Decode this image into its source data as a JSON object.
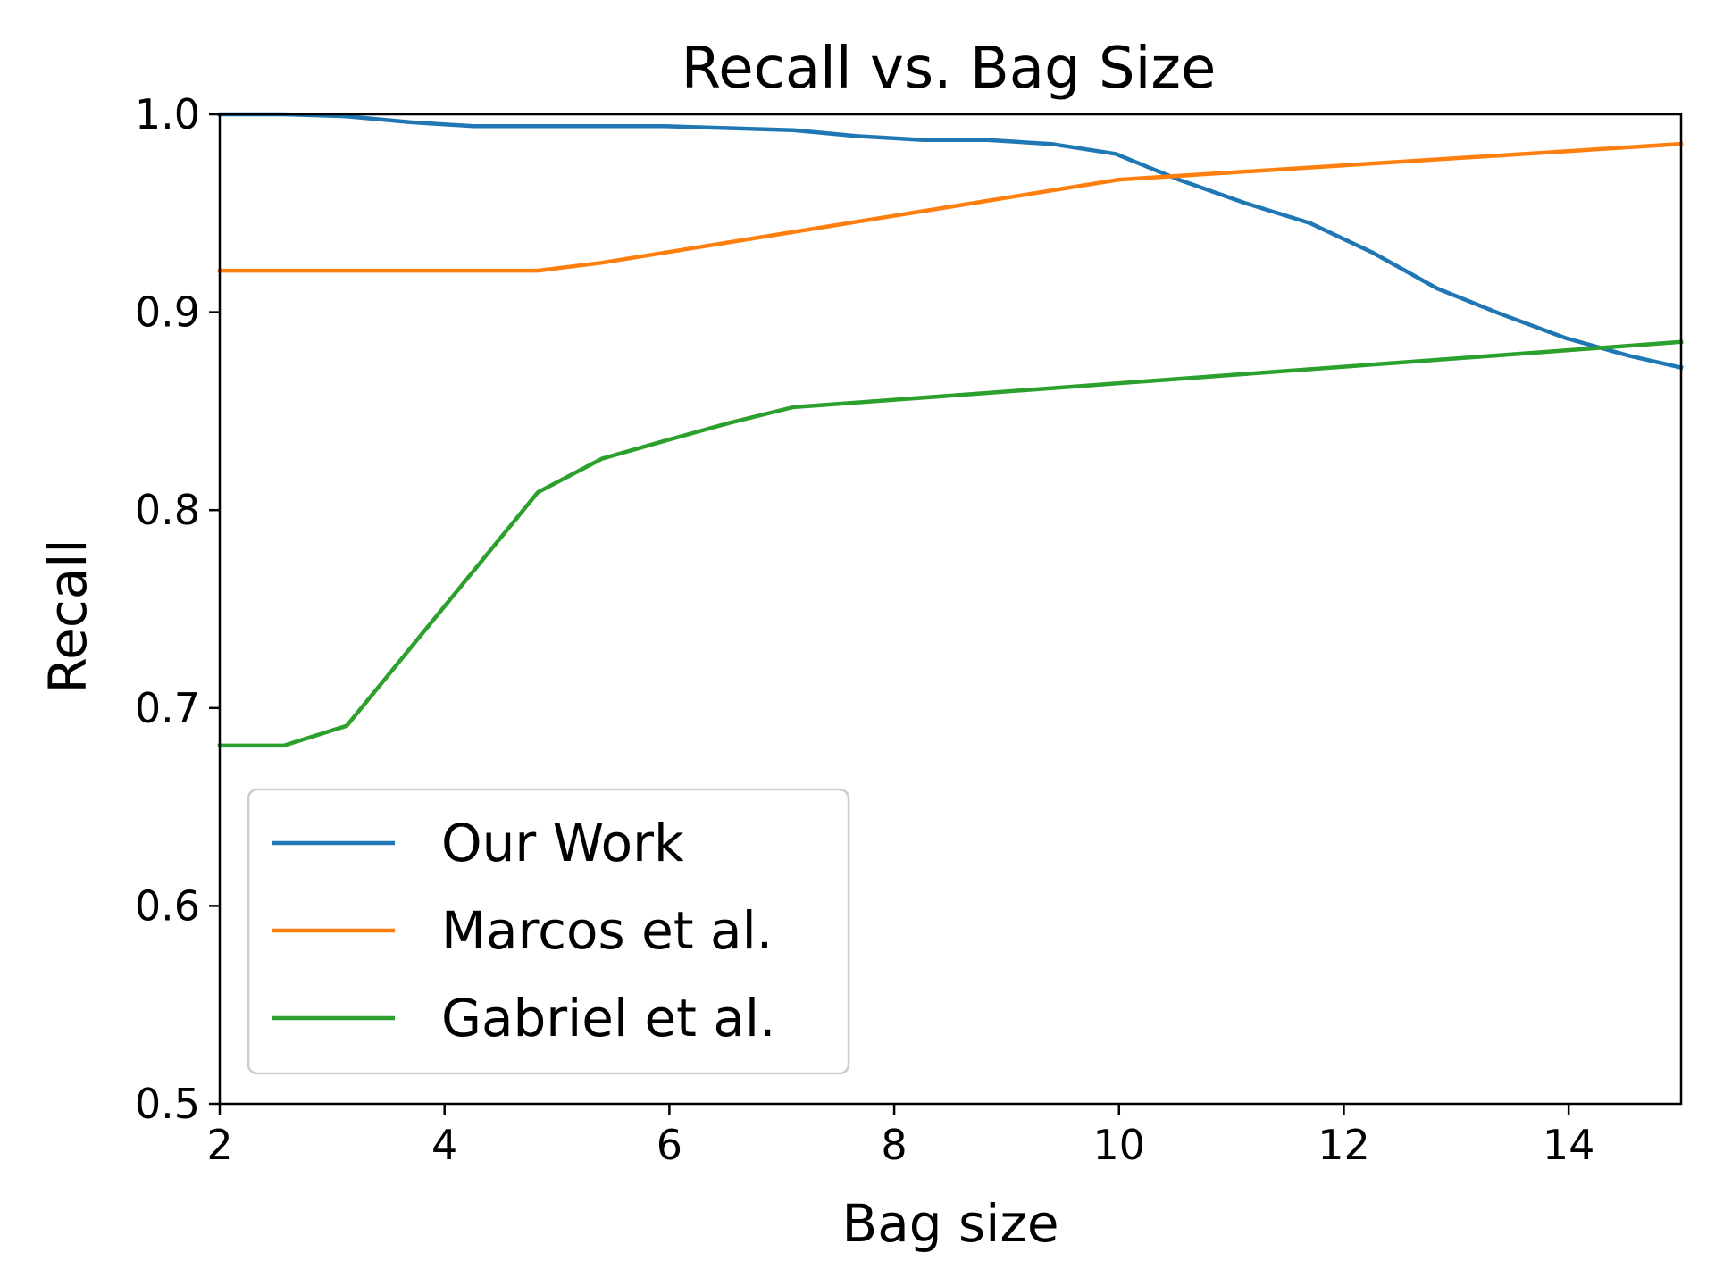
{
  "chart_data": {
    "type": "line",
    "title": "Recall vs. Bag Size",
    "xlabel": "Bag size",
    "ylabel": "Recall",
    "xlim": [
      2,
      15
    ],
    "ylim": [
      0.5,
      1.0
    ],
    "xticks": [
      2,
      4,
      6,
      8,
      10,
      12,
      14
    ],
    "xtick_labels": [
      "2",
      "4",
      "6",
      "8",
      "10",
      "12",
      "14"
    ],
    "yticks": [
      0.5,
      0.6,
      0.7,
      0.8,
      0.9,
      1.0
    ],
    "ytick_labels": [
      "0.5",
      "0.6",
      "0.7",
      "0.8",
      "0.9",
      "1.0"
    ],
    "grid": false,
    "legend_position": "lower-left",
    "series": [
      {
        "name": "Our Work",
        "color": "#1f77b4",
        "x": [
          2.0,
          2.57,
          3.13,
          3.7,
          4.26,
          4.83,
          5.4,
          5.96,
          6.53,
          7.1,
          7.67,
          8.26,
          8.83,
          9.4,
          9.97,
          10.53,
          11.13,
          11.7,
          12.26,
          12.83,
          13.4,
          13.97,
          14.54,
          15.0
        ],
        "y": [
          1.0,
          1.0,
          0.999,
          0.996,
          0.994,
          0.994,
          0.994,
          0.994,
          0.993,
          0.992,
          0.989,
          0.987,
          0.987,
          0.985,
          0.98,
          0.967,
          0.955,
          0.945,
          0.93,
          0.912,
          0.899,
          0.887,
          0.878,
          0.872
        ]
      },
      {
        "name": "Marcos et al.",
        "color": "#ff7f0e",
        "x": [
          2.0,
          4.83,
          5.4,
          10.0,
          15.0
        ],
        "y": [
          0.921,
          0.921,
          0.925,
          0.967,
          0.985
        ]
      },
      {
        "name": "Gabriel et al.",
        "color": "#2ca02c",
        "x": [
          2.0,
          2.57,
          3.13,
          4.83,
          5.4,
          5.96,
          6.53,
          7.1,
          15.0
        ],
        "y": [
          0.681,
          0.681,
          0.691,
          0.809,
          0.826,
          0.835,
          0.844,
          0.852,
          0.885
        ]
      }
    ]
  }
}
